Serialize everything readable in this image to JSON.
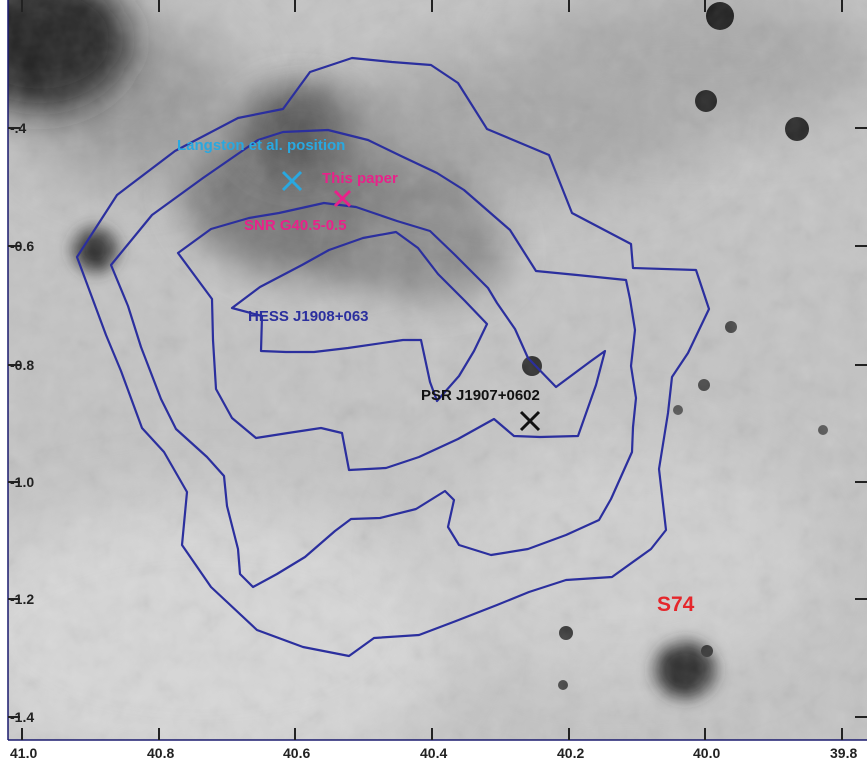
{
  "map": {
    "y_axis_ticks": [
      "-.4",
      "-0.6",
      "-0.8",
      "-1.0",
      "-1.2",
      "-1.4"
    ],
    "x_axis_ticks": [
      "41.0",
      "40.8",
      "40.6",
      "40.4",
      "40.2",
      "40.0",
      "39.8"
    ],
    "labels": {
      "langston": "Langston et al. position",
      "this_paper": "This paper",
      "snr": "SNR G40.5-0.5",
      "hess": "HESS J1908+063",
      "psr": "PSR J1907+0602",
      "s74": "S74"
    },
    "markers": {
      "langston": {
        "glon": 40.58,
        "glat": -0.49
      },
      "this_paper": {
        "glon": 40.49,
        "glat": -0.52
      },
      "psr": {
        "glon": 40.18,
        "glat": -0.89
      }
    },
    "colors": {
      "contour": "#2b2f9e",
      "langston": "#29a8e0",
      "this_paper": "#e8228a",
      "snr": "#e8228a",
      "hess": "#2b2f9e",
      "psr": "#111111",
      "s74": "#e5262b",
      "frame": "#1a1a6e"
    }
  }
}
